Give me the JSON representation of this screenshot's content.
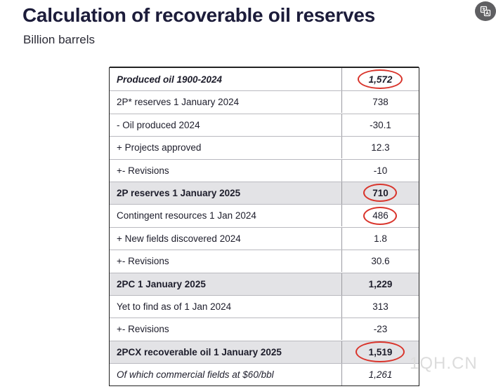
{
  "title": "Calculation of recoverable oil reserves",
  "subtitle": "Billion barrels",
  "icon": "translate-icon",
  "highlight_color": "#d9342b",
  "rows": [
    {
      "label": "Produced oil 1900-2024",
      "value": "1,572",
      "style": "bold-italic",
      "highlighted": true
    },
    {
      "label": "2P* reserves 1 January 2024",
      "value": "738",
      "style": "normal",
      "highlighted": false
    },
    {
      "label": "- Oil produced 2024",
      "value": "-30.1",
      "style": "normal",
      "highlighted": false
    },
    {
      "label": "+ Projects approved",
      "value": "12.3",
      "style": "normal",
      "highlighted": false
    },
    {
      "label": "+- Revisions",
      "value": "-10",
      "style": "normal",
      "highlighted": false
    },
    {
      "label": "2P reserves 1 January 2025",
      "value": "710",
      "style": "bold-shaded",
      "highlighted": true
    },
    {
      "label": "Contingent resources 1 Jan 2024",
      "value": "486",
      "style": "normal",
      "highlighted": true
    },
    {
      "label": "+ New fields discovered 2024",
      "value": "1.8",
      "style": "normal",
      "highlighted": false
    },
    {
      "label": "+- Revisions",
      "value": "30.6",
      "style": "normal",
      "highlighted": false
    },
    {
      "label": "2PC 1 January 2025",
      "value": "1,229",
      "style": "bold-shaded",
      "highlighted": false
    },
    {
      "label": "Yet to find as of 1 Jan 2024",
      "value": "313",
      "style": "normal",
      "highlighted": false
    },
    {
      "label": "+- Revisions",
      "value": "-23",
      "style": "normal",
      "highlighted": false
    },
    {
      "label": "2PCX recoverable oil 1 January 2025",
      "value": "1,519",
      "style": "bold-shaded",
      "highlighted": true
    },
    {
      "label": "Of which commercial fields at $60/bbl",
      "value": "1,261",
      "style": "italic",
      "highlighted": false
    }
  ],
  "watermark": "1QH.CN"
}
